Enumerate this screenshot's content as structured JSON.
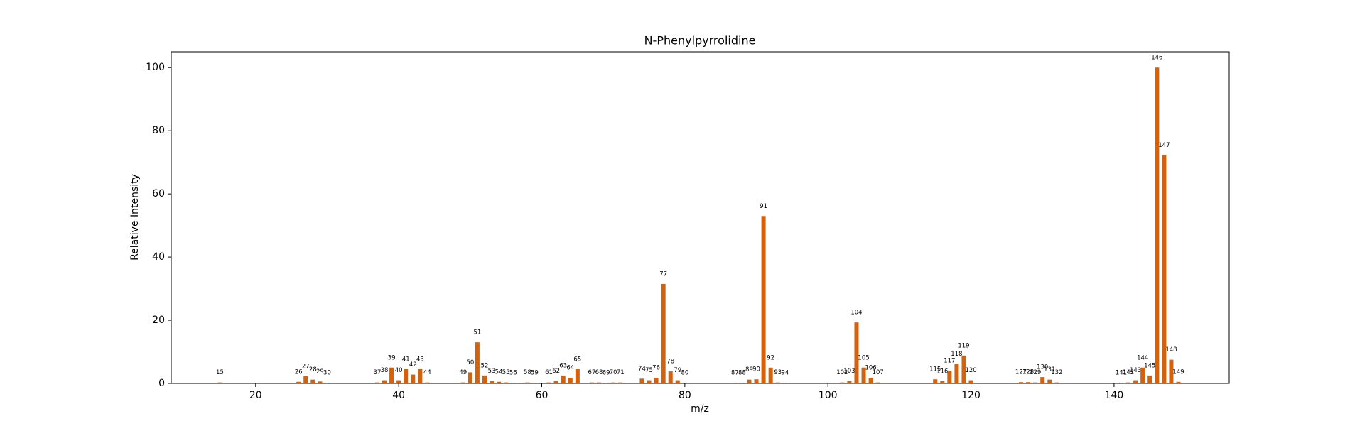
{
  "chart_data": {
    "type": "bar",
    "title": "N-Phenylpyrrolidine",
    "xlabel": "m/z",
    "ylabel": "Relative Intensity",
    "x": [
      15,
      26,
      27,
      28,
      29,
      30,
      37,
      38,
      39,
      40,
      41,
      42,
      43,
      44,
      49,
      50,
      51,
      52,
      53,
      54,
      55,
      56,
      58,
      59,
      61,
      62,
      63,
      64,
      65,
      67,
      68,
      69,
      70,
      71,
      74,
      75,
      76,
      77,
      78,
      79,
      80,
      87,
      88,
      89,
      90,
      91,
      92,
      93,
      94,
      102,
      103,
      104,
      105,
      106,
      107,
      115,
      116,
      117,
      118,
      119,
      120,
      127,
      128,
      129,
      130,
      131,
      132,
      141,
      142,
      143,
      144,
      145,
      146,
      147,
      148,
      149
    ],
    "values": [
      0.3,
      0.5,
      2.3,
      1.2,
      0.6,
      0.2,
      0.3,
      1.0,
      5.0,
      1.0,
      4.5,
      2.8,
      4.5,
      0.3,
      0.3,
      3.5,
      13,
      2.5,
      0.8,
      0.5,
      0.3,
      0.2,
      0.3,
      0.2,
      0.3,
      0.8,
      2.5,
      1.8,
      4.5,
      0.3,
      0.3,
      0.2,
      0.3,
      0.3,
      1.5,
      1.0,
      1.8,
      31.5,
      3.8,
      1.0,
      0.2,
      0.2,
      0.2,
      1.2,
      1.3,
      53,
      5.0,
      0.3,
      0.2,
      0.3,
      0.8,
      19.3,
      5.0,
      1.8,
      0.3,
      1.3,
      0.7,
      4.0,
      6.2,
      8.8,
      1.0,
      0.4,
      0.4,
      0.3,
      2.0,
      1.2,
      0.3,
      0.2,
      0.3,
      1.0,
      5.0,
      2.5,
      100,
      72.3,
      7.5,
      0.5
    ],
    "color": "#d3620e",
    "xlim": [
      8.2,
      156.1
    ],
    "xticks": [
      20,
      40,
      60,
      80,
      100,
      120,
      140
    ],
    "ylim": [
      0,
      105
    ],
    "yticks": [
      0,
      20,
      40,
      60,
      80,
      100
    ],
    "grid": false
  }
}
